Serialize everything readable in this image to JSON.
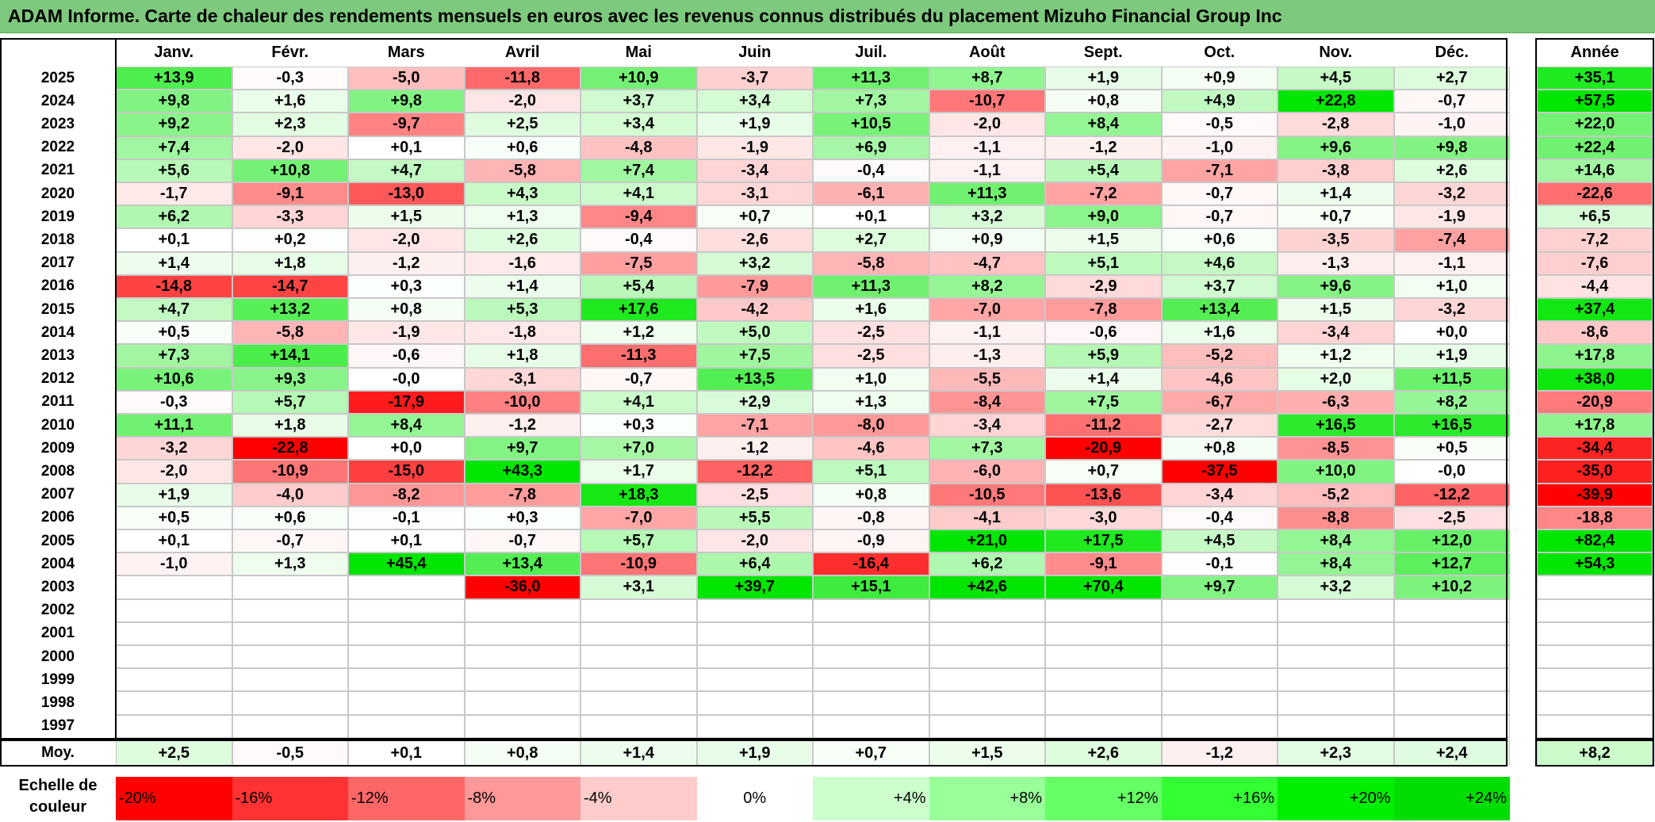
{
  "title": "ADAM Informe. Carte de chaleur des rendements mensuels en euros avec les revenus connus distribués du placement Mizuho Financial Group Inc",
  "chart_data": {
    "type": "heatmap",
    "months": [
      "Janv.",
      "Févr.",
      "Mars",
      "Avril",
      "Mai",
      "Juin",
      "Juil.",
      "Août",
      "Sept.",
      "Oct.",
      "Nov.",
      "Déc."
    ],
    "year_header": "Année",
    "rows": [
      {
        "year": "2025",
        "values": [
          "+13,9",
          "-0,3",
          "-5,0",
          "-11,8",
          "+10,9",
          "-3,7",
          "+11,3",
          "+8,7",
          "+1,9",
          "+0,9",
          "+4,5",
          "+2,7"
        ],
        "annual": "+35,1"
      },
      {
        "year": "2024",
        "values": [
          "+9,8",
          "+1,6",
          "+9,8",
          "-2,0",
          "+3,7",
          "+3,4",
          "+7,3",
          "-10,7",
          "+0,8",
          "+4,9",
          "+22,8",
          "-0,7"
        ],
        "annual": "+57,5"
      },
      {
        "year": "2023",
        "values": [
          "+9,2",
          "+2,3",
          "-9,7",
          "+2,5",
          "+3,4",
          "+1,9",
          "+10,5",
          "-2,0",
          "+8,4",
          "-0,5",
          "-2,8",
          "-1,0"
        ],
        "annual": "+22,0"
      },
      {
        "year": "2022",
        "values": [
          "+7,4",
          "-2,0",
          "+0,1",
          "+0,6",
          "-4,8",
          "-1,9",
          "+6,9",
          "-1,1",
          "-1,2",
          "-1,0",
          "+9,6",
          "+9,8"
        ],
        "annual": "+22,4"
      },
      {
        "year": "2021",
        "values": [
          "+5,6",
          "+10,8",
          "+4,7",
          "-5,8",
          "+7,4",
          "-3,4",
          "-0,4",
          "-1,1",
          "+5,4",
          "-7,1",
          "-3,8",
          "+2,6"
        ],
        "annual": "+14,6"
      },
      {
        "year": "2020",
        "values": [
          "-1,7",
          "-9,1",
          "-13,0",
          "+4,3",
          "+4,1",
          "-3,1",
          "-6,1",
          "+11,3",
          "-7,2",
          "-0,7",
          "+1,4",
          "-3,2"
        ],
        "annual": "-22,6"
      },
      {
        "year": "2019",
        "values": [
          "+6,2",
          "-3,3",
          "+1,5",
          "+1,3",
          "-9,4",
          "+0,7",
          "+0,1",
          "+3,2",
          "+9,0",
          "-0,7",
          "+0,7",
          "-1,9"
        ],
        "annual": "+6,5"
      },
      {
        "year": "2018",
        "values": [
          "+0,1",
          "+0,2",
          "-2,0",
          "+2,6",
          "-0,4",
          "-2,6",
          "+2,7",
          "+0,9",
          "+1,5",
          "+0,6",
          "-3,5",
          "-7,4"
        ],
        "annual": "-7,2"
      },
      {
        "year": "2017",
        "values": [
          "+1,4",
          "+1,8",
          "-1,2",
          "-1,6",
          "-7,5",
          "+3,2",
          "-5,8",
          "-4,7",
          "+5,1",
          "+4,6",
          "-1,3",
          "-1,1"
        ],
        "annual": "-7,6"
      },
      {
        "year": "2016",
        "values": [
          "-14,8",
          "-14,7",
          "+0,3",
          "+1,4",
          "+5,4",
          "-7,9",
          "+11,3",
          "+8,2",
          "-2,9",
          "+3,7",
          "+9,6",
          "+1,0"
        ],
        "annual": "-4,4"
      },
      {
        "year": "2015",
        "values": [
          "+4,7",
          "+13,2",
          "+0,8",
          "+5,3",
          "+17,6",
          "-4,2",
          "+1,6",
          "-7,0",
          "-7,8",
          "+13,4",
          "+1,5",
          "-3,2"
        ],
        "annual": "+37,4"
      },
      {
        "year": "2014",
        "values": [
          "+0,5",
          "-5,8",
          "-1,9",
          "-1,8",
          "+1,2",
          "+5,0",
          "-2,5",
          "-1,1",
          "-0,6",
          "+1,6",
          "-3,4",
          "+0,0"
        ],
        "annual": "-8,6"
      },
      {
        "year": "2013",
        "values": [
          "+7,3",
          "+14,1",
          "-0,6",
          "+1,8",
          "-11,3",
          "+7,5",
          "-2,5",
          "-1,3",
          "+5,9",
          "-5,2",
          "+1,2",
          "+1,9"
        ],
        "annual": "+17,8"
      },
      {
        "year": "2012",
        "values": [
          "+10,6",
          "+9,3",
          "-0,0",
          "-3,1",
          "-0,7",
          "+13,5",
          "+1,0",
          "-5,5",
          "+1,4",
          "-4,6",
          "+2,0",
          "+11,5"
        ],
        "annual": "+38,0"
      },
      {
        "year": "2011",
        "values": [
          "-0,3",
          "+5,7",
          "-17,9",
          "-10,0",
          "+4,1",
          "+2,9",
          "+1,3",
          "-8,4",
          "+7,5",
          "-6,7",
          "-6,3",
          "+8,2"
        ],
        "annual": "-20,9"
      },
      {
        "year": "2010",
        "values": [
          "+11,1",
          "+1,8",
          "+8,4",
          "-1,2",
          "+0,3",
          "-7,1",
          "-8,0",
          "-3,4",
          "-11,2",
          "-2,7",
          "+16,5",
          "+16,5"
        ],
        "annual": "+17,8"
      },
      {
        "year": "2009",
        "values": [
          "-3,2",
          "-22,8",
          "+0,0",
          "+9,7",
          "+7,0",
          "-1,2",
          "-4,6",
          "+7,3",
          "-20,9",
          "+0,8",
          "-8,5",
          "+0,5"
        ],
        "annual": "-34,4"
      },
      {
        "year": "2008",
        "values": [
          "-2,0",
          "-10,9",
          "-15,0",
          "+43,3",
          "+1,7",
          "-12,2",
          "+5,1",
          "-6,0",
          "+0,7",
          "-37,5",
          "+10,0",
          "-0,0"
        ],
        "annual": "-35,0"
      },
      {
        "year": "2007",
        "values": [
          "+1,9",
          "-4,0",
          "-8,2",
          "-7,8",
          "+18,3",
          "-2,5",
          "+0,8",
          "-10,5",
          "-13,6",
          "-3,4",
          "-5,2",
          "-12,2"
        ],
        "annual": "-39,9"
      },
      {
        "year": "2006",
        "values": [
          "+0,5",
          "+0,6",
          "-0,1",
          "+0,3",
          "-7,0",
          "+5,5",
          "-0,8",
          "-4,1",
          "-3,0",
          "-0,4",
          "-8,8",
          "-2,5"
        ],
        "annual": "-18,8"
      },
      {
        "year": "2005",
        "values": [
          "+0,1",
          "-0,7",
          "+0,1",
          "-0,7",
          "+5,7",
          "-2,0",
          "-0,9",
          "+21,0",
          "+17,5",
          "+4,5",
          "+8,4",
          "+12,0"
        ],
        "annual": "+82,4"
      },
      {
        "year": "2004",
        "values": [
          "-1,0",
          "+1,3",
          "+45,4",
          "+13,4",
          "-10,9",
          "+6,4",
          "-16,4",
          "+6,2",
          "-9,1",
          "-0,1",
          "+8,4",
          "+12,7"
        ],
        "annual": "+54,3"
      },
      {
        "year": "2003",
        "values": [
          "",
          "",
          "",
          "-36,0",
          "+3,1",
          "+39,7",
          "+15,1",
          "+42,6",
          "+70,4",
          "+9,7",
          "+3,2",
          "+10,2"
        ],
        "annual": ""
      },
      {
        "year": "2002",
        "values": [
          "",
          "",
          "",
          "",
          "",
          "",
          "",
          "",
          "",
          "",
          "",
          ""
        ],
        "annual": ""
      },
      {
        "year": "2001",
        "values": [
          "",
          "",
          "",
          "",
          "",
          "",
          "",
          "",
          "",
          "",
          "",
          ""
        ],
        "annual": ""
      },
      {
        "year": "2000",
        "values": [
          "",
          "",
          "",
          "",
          "",
          "",
          "",
          "",
          "",
          "",
          "",
          ""
        ],
        "annual": ""
      },
      {
        "year": "1999",
        "values": [
          "",
          "",
          "",
          "",
          "",
          "",
          "",
          "",
          "",
          "",
          "",
          ""
        ],
        "annual": ""
      },
      {
        "year": "1998",
        "values": [
          "",
          "",
          "",
          "",
          "",
          "",
          "",
          "",
          "",
          "",
          "",
          ""
        ],
        "annual": ""
      },
      {
        "year": "1997",
        "values": [
          "",
          "",
          "",
          "",
          "",
          "",
          "",
          "",
          "",
          "",
          "",
          ""
        ],
        "annual": ""
      }
    ],
    "average_row": {
      "label": "Moy.",
      "values": [
        "+2,5",
        "-0,5",
        "+0,1",
        "+0,8",
        "+1,4",
        "+1,9",
        "+0,7",
        "+1,5",
        "+2,6",
        "-1,2",
        "+2,3",
        "+2,4"
      ],
      "annual": "+8,2"
    },
    "legend": {
      "label": "Echelle de couleur",
      "steps": [
        "-20%",
        "-16%",
        "-12%",
        "-8%",
        "-4%",
        "0%",
        "+4%",
        "+8%",
        "+12%",
        "+16%",
        "+20%",
        "+24%"
      ],
      "colors": [
        "#ff0000",
        "#ff3333",
        "#ff6666",
        "#ff9999",
        "#ffcccc",
        "#ffffff",
        "#ccffcc",
        "#99ff99",
        "#66ff66",
        "#33ff33",
        "#00ee00",
        "#00dd00"
      ]
    },
    "color_scale": {
      "negative": "#ff0000",
      "zero": "#ffffff",
      "positive": "#00e600"
    }
  }
}
